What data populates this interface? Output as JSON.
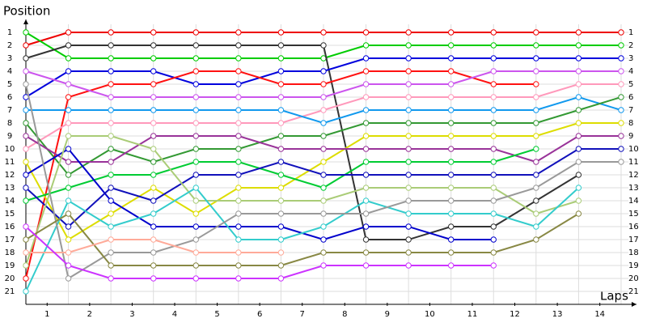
{
  "chart_data": {
    "type": "line",
    "y_label": "Position",
    "x_label": "Laps",
    "x": [
      0,
      1,
      2,
      3,
      4,
      5,
      6,
      7,
      8,
      9,
      10,
      11,
      12,
      13,
      14
    ],
    "xlim": [
      0,
      14.4
    ],
    "ylim": [
      0,
      22
    ],
    "y_inverted": true,
    "grid": true,
    "xgrid": [
      0,
      1,
      2,
      3,
      4,
      5,
      6,
      7,
      8,
      9,
      10,
      11,
      12,
      13,
      14
    ],
    "xticks": [
      {
        "value": 0.5,
        "label": "1"
      },
      {
        "value": 1.5,
        "label": "2"
      },
      {
        "value": 2.5,
        "label": "3"
      },
      {
        "value": 3.5,
        "label": "4"
      },
      {
        "value": 4.5,
        "label": "5"
      },
      {
        "value": 5.5,
        "label": "6"
      },
      {
        "value": 6.5,
        "label": "7"
      },
      {
        "value": 7.5,
        "label": "8"
      },
      {
        "value": 8.5,
        "label": "9"
      },
      {
        "value": 9.5,
        "label": "10"
      },
      {
        "value": 10.5,
        "label": "11"
      },
      {
        "value": 11.5,
        "label": "12"
      },
      {
        "value": 12.5,
        "label": "13"
      },
      {
        "value": 13.5,
        "label": "14"
      }
    ],
    "yticks": [
      1,
      2,
      3,
      4,
      5,
      6,
      7,
      8,
      9,
      10,
      11,
      12,
      13,
      14,
      15,
      16,
      17,
      18,
      19,
      20,
      21
    ],
    "y2lim": [
      0,
      22
    ],
    "y2ticks": [
      1,
      2,
      3,
      4,
      5,
      6,
      7,
      8,
      9,
      10,
      11,
      12,
      13,
      14,
      15,
      16,
      17,
      18,
      19,
      20,
      21
    ],
    "series": [
      {
        "color": "#ee0000",
        "values": [
          2,
          1,
          1,
          1,
          1,
          1,
          1,
          1,
          1,
          1,
          1,
          1,
          1,
          1,
          1
        ]
      },
      {
        "color": "#00cc00",
        "values": [
          1,
          3,
          3,
          3,
          3,
          3,
          3,
          3,
          2,
          2,
          2,
          2,
          2,
          2,
          2
        ]
      },
      {
        "color": "#333333",
        "values": [
          3,
          2,
          2,
          2,
          2,
          2,
          2,
          2,
          17,
          17,
          16,
          16,
          14,
          12,
          null
        ]
      },
      {
        "color": "#0000dd",
        "values": [
          6,
          4,
          4,
          4,
          5,
          5,
          4,
          4,
          3,
          3,
          3,
          3,
          3,
          3,
          3
        ]
      },
      {
        "color": "#ff1111",
        "values": [
          20,
          6,
          5,
          5,
          4,
          4,
          5,
          5,
          4,
          4,
          4,
          5,
          5,
          null,
          null
        ]
      },
      {
        "color": "#cc55ee",
        "values": [
          4,
          5,
          6,
          6,
          6,
          6,
          6,
          6,
          5,
          5,
          5,
          4,
          4,
          4,
          4
        ]
      },
      {
        "color": "#ff99bb",
        "values": [
          10,
          8,
          8,
          8,
          8,
          8,
          8,
          7,
          6,
          6,
          6,
          6,
          6,
          5,
          5
        ]
      },
      {
        "color": "#1199ee",
        "values": [
          7,
          7,
          7,
          7,
          7,
          7,
          7,
          8,
          7,
          7,
          7,
          7,
          7,
          6,
          7
        ]
      },
      {
        "color": "#339933",
        "values": [
          8,
          12,
          10,
          11,
          10,
          10,
          9,
          9,
          8,
          8,
          8,
          8,
          8,
          7,
          6
        ]
      },
      {
        "color": "#dddd00",
        "values": [
          11,
          17,
          15,
          13,
          15,
          13,
          13,
          11,
          9,
          9,
          9,
          9,
          9,
          8,
          8
        ]
      },
      {
        "color": "#993399",
        "values": [
          9,
          11,
          11,
          9,
          9,
          9,
          10,
          10,
          10,
          10,
          10,
          10,
          11,
          9,
          9
        ]
      },
      {
        "color": "#00cc33",
        "values": [
          14,
          13,
          12,
          12,
          11,
          11,
          12,
          13,
          11,
          11,
          11,
          11,
          10,
          null,
          null
        ]
      },
      {
        "color": "#0000cc",
        "values": [
          12,
          10,
          14,
          16,
          16,
          16,
          16,
          17,
          16,
          16,
          17,
          17,
          null,
          null,
          null
        ]
      },
      {
        "color": "#1111bb",
        "values": [
          13,
          16,
          13,
          14,
          12,
          12,
          11,
          12,
          12,
          12,
          12,
          12,
          12,
          10,
          10
        ]
      },
      {
        "color": "#aacc77",
        "values": [
          19,
          9,
          9,
          10,
          14,
          14,
          14,
          14,
          13,
          13,
          13,
          13,
          15,
          14,
          null
        ]
      },
      {
        "color": "#33cccc",
        "values": [
          21,
          14,
          16,
          15,
          13,
          17,
          17,
          16,
          14,
          15,
          15,
          15,
          16,
          13,
          null
        ]
      },
      {
        "color": "#999999",
        "values": [
          5,
          20,
          18,
          18,
          17,
          15,
          15,
          15,
          15,
          14,
          14,
          14,
          13,
          11,
          11
        ]
      },
      {
        "color": "#888844",
        "values": [
          17,
          15,
          19,
          19,
          19,
          19,
          19,
          18,
          18,
          18,
          18,
          18,
          17,
          15,
          null
        ]
      },
      {
        "color": "#ffaa99",
        "values": [
          18,
          18,
          17,
          17,
          18,
          18,
          18,
          null,
          null,
          null,
          null,
          null,
          null,
          null,
          null
        ]
      },
      {
        "color": "#cc33ff",
        "values": [
          16,
          19,
          20,
          20,
          20,
          20,
          20,
          19,
          19,
          19,
          19,
          19,
          null,
          null,
          null
        ]
      }
    ]
  }
}
